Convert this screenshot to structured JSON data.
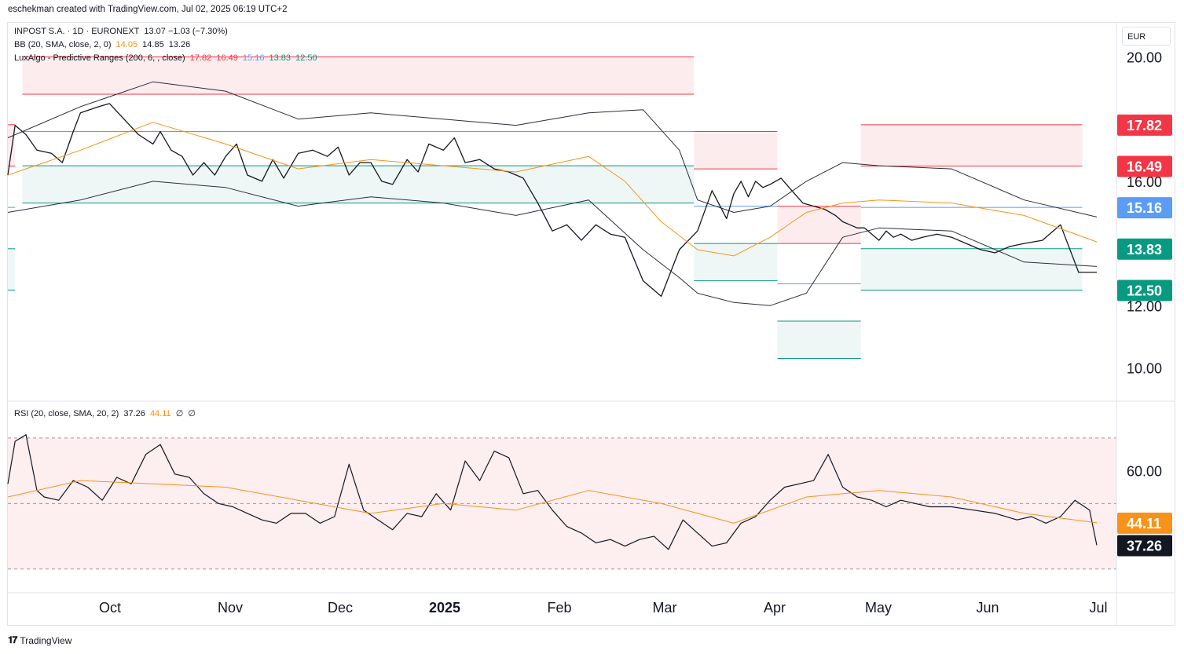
{
  "header": {
    "credit": "eschekman created with TradingView.com, Jul 02, 2025 06:19 UTC+2"
  },
  "legend": {
    "main": {
      "name": "INPOST S.A. · 1D · EURONEXT",
      "values": "13.07  −1.03 (−7.30%)"
    },
    "bb": {
      "name": "BB (20, SMA, close, 2, 0)",
      "v1": "14.05",
      "v2": "14.85",
      "v3": "13.26"
    },
    "pr": {
      "name": "LuxAlgo - Predictive Ranges (200, 6, , close)",
      "v1": "17.82",
      "v2": "16.49",
      "v3": "15.16",
      "v4": "13.83",
      "v5": "12.50"
    },
    "rsi": {
      "name": "RSI (20, close, SMA, 20, 2)",
      "v1": "37.26",
      "v2": "44.11",
      "v3": "∅",
      "v4": "∅"
    }
  },
  "currency": "EUR",
  "colors": {
    "price": "#131722",
    "bb_basis": "#f7931a",
    "red": "#f23645",
    "blue": "#5b9cf6",
    "teal": "#089981",
    "red_zone": "#fdecee",
    "teal_zone": "#eef7f5",
    "rsi_band": "#fdeef0"
  },
  "footer": {
    "brand": "TradingView",
    "logo_icon": "tradingview-logo-icon"
  },
  "chart_data": [
    {
      "type": "line",
      "title": "INPOST S.A. · 1D · EURONEXT",
      "ylim": [
        8.95,
        21.1
      ],
      "y_ticks": [
        "20.00",
        "16.00",
        "12.00",
        "10.00"
      ],
      "x_labels": [
        "Oct",
        "Nov",
        "Dec",
        "2025",
        "Feb",
        "Mar",
        "Apr",
        "May",
        "Jun",
        "Jul"
      ],
      "series": [
        {
          "name": "INPOST S.A.",
          "values_description": "close price",
          "x": [
            0,
            2,
            5,
            8,
            12,
            15,
            18,
            20,
            25,
            28,
            32,
            36,
            40,
            42,
            45,
            48,
            51,
            54,
            57,
            60,
            63,
            66,
            70,
            73,
            76,
            80,
            84,
            88,
            91,
            94,
            97,
            100,
            103,
            106,
            110,
            113,
            116,
            120,
            123,
            126,
            130,
            134,
            138,
            142,
            146,
            150,
            154,
            158,
            162,
            166,
            170,
            175,
            180,
            185,
            190,
            194,
            198,
            200,
            202,
            204,
            206,
            208,
            210,
            213,
            216,
            219,
            222,
            225,
            228,
            230,
            232,
            234,
            236,
            238,
            240,
            242,
            244,
            246,
            249,
            252,
            256,
            260,
            264,
            268,
            272,
            276,
            280,
            285,
            290,
            295,
            300
          ],
          "y": [
            16.2,
            17.8,
            17.5,
            17.0,
            16.9,
            16.6,
            17.6,
            18.2,
            18.4,
            18.5,
            18.0,
            17.5,
            17.2,
            17.6,
            17.0,
            16.8,
            16.2,
            16.6,
            16.2,
            16.8,
            17.2,
            16.2,
            16.0,
            16.7,
            16.1,
            16.9,
            17.0,
            16.8,
            17.1,
            16.2,
            16.6,
            16.6,
            16.0,
            15.9,
            16.7,
            16.3,
            17.2,
            17.0,
            17.4,
            16.6,
            16.7,
            16.4,
            16.3,
            16.1,
            15.3,
            14.4,
            14.6,
            14.1,
            14.6,
            14.3,
            14.2,
            12.8,
            12.3,
            13.8,
            14.4,
            15.7,
            14.8,
            15.6,
            16.0,
            15.5,
            16.0,
            15.8,
            15.9,
            16.1,
            15.7,
            15.3,
            15.2,
            15.1,
            14.9,
            14.7,
            14.6,
            14.5,
            14.5,
            14.3,
            14.1,
            14.4,
            14.2,
            14.3,
            14.1,
            14.2,
            14.3,
            14.2,
            14.0,
            13.8,
            13.7,
            13.9,
            14.0,
            14.1,
            14.6,
            13.07,
            13.07
          ]
        },
        {
          "name": "BB basis",
          "x": [
            0,
            20,
            40,
            60,
            80,
            100,
            120,
            140,
            160,
            170,
            180,
            190,
            200,
            210,
            220,
            230,
            240,
            260,
            280,
            300
          ],
          "y": [
            16.2,
            17.0,
            17.9,
            17.2,
            16.4,
            16.7,
            16.5,
            16.3,
            16.8,
            16.0,
            14.7,
            13.8,
            13.6,
            14.2,
            15.0,
            15.3,
            15.4,
            15.3,
            14.9,
            14.05
          ]
        },
        {
          "name": "BB upper",
          "x": [
            0,
            20,
            40,
            60,
            80,
            100,
            120,
            140,
            160,
            175,
            185,
            190,
            200,
            210,
            220,
            230,
            240,
            260,
            280,
            300
          ],
          "y": [
            17.4,
            18.4,
            19.2,
            18.9,
            18.0,
            18.2,
            18.0,
            17.8,
            18.2,
            18.3,
            17.0,
            15.4,
            15.0,
            15.2,
            16.0,
            16.6,
            16.5,
            16.4,
            15.4,
            14.85
          ]
        },
        {
          "name": "BB lower",
          "x": [
            0,
            20,
            40,
            60,
            80,
            100,
            120,
            140,
            160,
            175,
            185,
            190,
            200,
            210,
            220,
            230,
            240,
            260,
            280,
            300
          ],
          "y": [
            15.0,
            15.4,
            16.0,
            15.8,
            15.2,
            15.5,
            15.3,
            14.9,
            15.4,
            13.8,
            12.9,
            12.4,
            12.1,
            12.0,
            12.4,
            14.2,
            14.5,
            14.4,
            13.4,
            13.26
          ]
        }
      ],
      "predictive_ranges": [
        {
          "x_start": 0,
          "x_end": 2,
          "levels": [
            17.82,
            16.49,
            15.16,
            13.83,
            12.5
          ]
        },
        {
          "x_start": 4,
          "x_end": 189,
          "levels": [
            20.0,
            18.8,
            17.6,
            16.5,
            15.3
          ]
        },
        {
          "x_start": 189,
          "x_end": 212,
          "levels": [
            17.6,
            16.4,
            15.2,
            14.0,
            12.8
          ]
        },
        {
          "x_start": 212,
          "x_end": 235,
          "levels": [
            15.2,
            14.0,
            12.7,
            11.5,
            10.3
          ]
        },
        {
          "x_start": 235,
          "x_end": 296,
          "levels": [
            17.82,
            16.49,
            15.16,
            13.83,
            12.5
          ]
        }
      ],
      "price_badges": [
        "17.82",
        "16.49",
        "15.16",
        "13.83",
        "12.50"
      ]
    },
    {
      "type": "line",
      "title": "RSI (20, close, SMA, 20, 2)",
      "ylim": [
        23.0,
        81.0
      ],
      "y_ticks": [
        "60.00"
      ],
      "overbought": 70,
      "oversold": 30,
      "mid": 50,
      "series": [
        {
          "name": "RSI",
          "x": [
            0,
            2,
            5,
            8,
            10,
            14,
            18,
            22,
            26,
            30,
            34,
            38,
            42,
            46,
            50,
            54,
            58,
            62,
            66,
            70,
            74,
            78,
            82,
            86,
            90,
            94,
            98,
            102,
            106,
            110,
            114,
            118,
            122,
            126,
            130,
            134,
            138,
            142,
            146,
            150,
            154,
            158,
            162,
            166,
            170,
            174,
            178,
            182,
            186,
            190,
            194,
            198,
            202,
            206,
            210,
            214,
            218,
            222,
            226,
            230,
            234,
            238,
            242,
            246,
            250,
            254,
            260,
            266,
            272,
            278,
            282,
            286,
            290,
            294,
            298,
            300
          ],
          "y": [
            56,
            69,
            71,
            54,
            52,
            51,
            57,
            55,
            51,
            58,
            56,
            65,
            68,
            59,
            58,
            53,
            50,
            49,
            47,
            45,
            44,
            47,
            47,
            44,
            46,
            62,
            48,
            45,
            42,
            47,
            46,
            53,
            48,
            63,
            57,
            66,
            64,
            53,
            54,
            48,
            43,
            41,
            38,
            39,
            37,
            39,
            40,
            36,
            45,
            41,
            37,
            38,
            44,
            46,
            51,
            55,
            56,
            57,
            65,
            55,
            52,
            51,
            49,
            51,
            50,
            49,
            49,
            48,
            47,
            45,
            46,
            44,
            46,
            51,
            48,
            37.26
          ]
        },
        {
          "name": "RSI-based MA",
          "x": [
            0,
            20,
            40,
            60,
            80,
            100,
            120,
            140,
            160,
            180,
            200,
            220,
            240,
            260,
            280,
            300
          ],
          "y": [
            52,
            57,
            56,
            55,
            51,
            47,
            50,
            48,
            54,
            50,
            44,
            52,
            54,
            52,
            47,
            44.11
          ]
        }
      ]
    }
  ]
}
